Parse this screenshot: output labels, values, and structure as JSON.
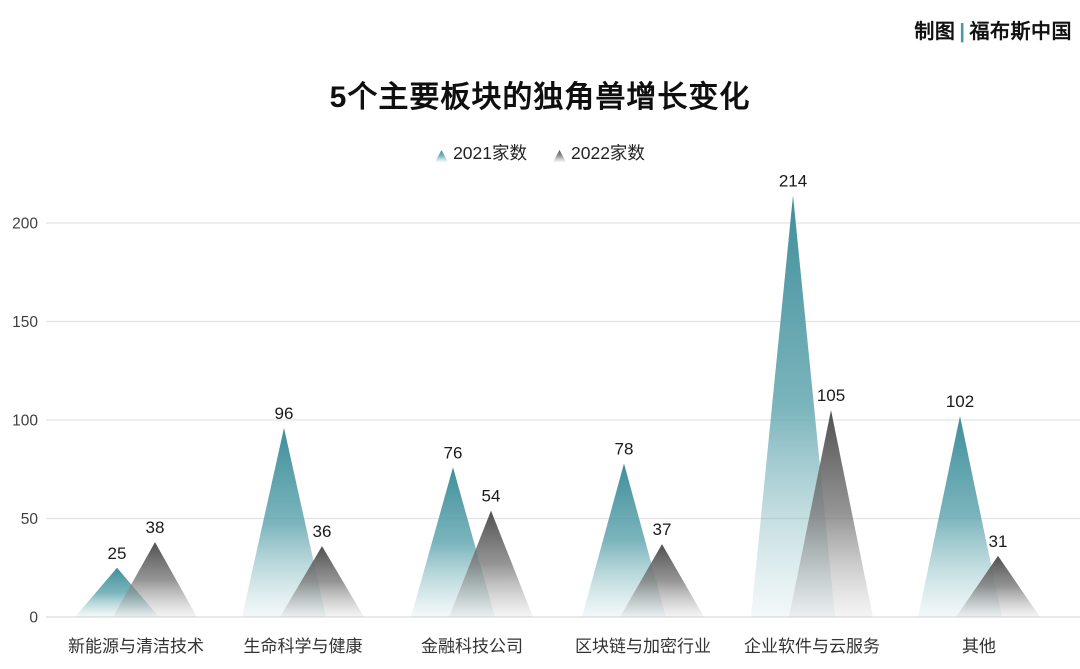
{
  "credit": {
    "label": "制图",
    "separator": "|",
    "source": "福布斯中国",
    "separator_color": "#4A9AA6"
  },
  "chart_data": {
    "type": "bar",
    "variant": "peak-triangles",
    "title": "5个主要板块的独角兽增长变化",
    "categories": [
      "新能源与清洁技术",
      "生命科学与健康",
      "金融科技公司",
      "区块链与加密行业",
      "企业软件与云服务",
      "其他"
    ],
    "series": [
      {
        "name": "2021家数",
        "color": "#3F8E9A",
        "values": [
          25,
          96,
          76,
          78,
          214,
          102
        ]
      },
      {
        "name": "2022家数",
        "color": "#4F4F4F",
        "values": [
          38,
          36,
          54,
          37,
          105,
          31
        ]
      }
    ],
    "xlabel": "",
    "ylabel": "",
    "yticks": [
      0,
      50,
      100,
      150,
      200
    ],
    "ylim": [
      0,
      225
    ],
    "grid": true,
    "legend_position": "top",
    "gridline_color": "#E3E3E3",
    "axis_line_color": "#DCDCDC",
    "tick_label_color": "#3F3F3F",
    "value_label_color": "#1A1A1A",
    "category_label_color": "#333333"
  }
}
